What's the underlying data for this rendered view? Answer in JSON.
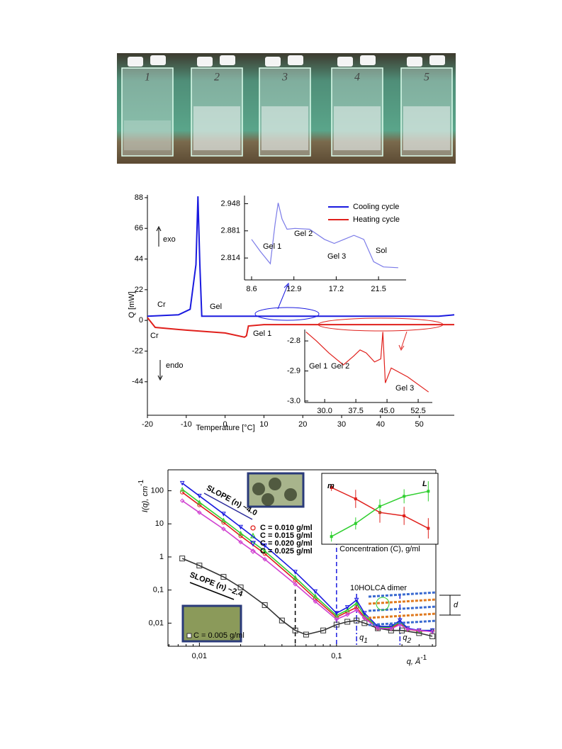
{
  "photo": {
    "vial_labels": [
      "1",
      "2",
      "3",
      "4",
      "5"
    ]
  },
  "chart_data": [
    {
      "type": "line",
      "xlabel": "Temperature [°C]",
      "ylabel": "Q [mW]",
      "xlim": [
        -20,
        59
      ],
      "ylim": [
        -68,
        90
      ],
      "xticks": [
        -20,
        -10,
        0,
        10,
        20,
        30,
        40,
        50
      ],
      "yticks": [
        88,
        66,
        44,
        22,
        0,
        -22,
        -44
      ],
      "series": [
        {
          "name": "Cooling cycle",
          "color": "#1a1adf",
          "x": [
            -20,
            -12,
            -9,
            -7.5,
            -7,
            -6.5,
            -6,
            10,
            30,
            55,
            59
          ],
          "values": [
            3,
            4,
            8,
            40,
            89,
            40,
            3,
            3,
            3,
            3,
            4
          ]
        },
        {
          "name": "Heating cycle",
          "color": "#e0201c",
          "x": [
            -20,
            -18,
            -10,
            0,
            5,
            5.5,
            6,
            10,
            30,
            59
          ],
          "values": [
            2,
            -5,
            -7,
            -9,
            -12,
            -11,
            -4,
            -3,
            -3,
            -3
          ]
        }
      ],
      "annotations": [
        "exo",
        "endo",
        "Cr",
        "Gel",
        "Cr",
        "Gel 1"
      ]
    },
    {
      "type": "line",
      "xlim": [
        7.88,
        24.3
      ],
      "ylim": [
        2.76,
        2.968
      ],
      "xticks": [
        8.6,
        12.9,
        17.2,
        21.5
      ],
      "yticks": [
        2.948,
        2.881,
        2.814
      ],
      "series": [
        {
          "color": "#7b7be8",
          "x": [
            8.6,
            9.5,
            10.5,
            11,
            11.3,
            11.7,
            12.2,
            13,
            14.5,
            16,
            17,
            18,
            19,
            20,
            21,
            22,
            23.5
          ],
          "values": [
            2.86,
            2.83,
            2.8,
            2.9,
            2.95,
            2.91,
            2.885,
            2.887,
            2.885,
            2.86,
            2.85,
            2.86,
            2.87,
            2.86,
            2.805,
            2.792,
            2.79
          ]
        }
      ],
      "annotations": [
        "Gel 1",
        "Gel 2",
        "Gel 3",
        "Sol"
      ]
    },
    {
      "type": "line",
      "xlim": [
        25.2,
        55.9
      ],
      "ylim": [
        -3.005,
        -2.762
      ],
      "xticks": [
        {
          "value": 30,
          "label": "30.0"
        },
        37.5,
        {
          "value": 45,
          "label": "45.0"
        },
        52.5
      ],
      "yticks": [
        -2.8,
        -2.9,
        {
          "value": -3,
          "label": "-3.0"
        }
      ],
      "series": [
        {
          "color": "#e0201c",
          "x": [
            25.5,
            28,
            31,
            34.5,
            37,
            38.5,
            40,
            42,
            43.5,
            44,
            44.6,
            46,
            50,
            55
          ],
          "values": [
            -2.77,
            -2.8,
            -2.84,
            -2.88,
            -2.85,
            -2.83,
            -2.84,
            -2.87,
            -2.86,
            -2.77,
            -2.94,
            -2.89,
            -2.92,
            -2.97
          ]
        }
      ],
      "annotations": [
        "Gel 1",
        "Gel 2",
        "Gel 3"
      ]
    },
    {
      "type": "line",
      "log_x": true,
      "log_y": true,
      "xlabel": {
        "main": "q, Å",
        "sup": "-1"
      },
      "ylabel": {
        "main": "I(q), cm",
        "sup": "-1"
      },
      "xlim": [
        0.0059,
        0.53
      ],
      "ylim": [
        0.002,
        430
      ],
      "xticks": [
        {
          "value": 0.01,
          "label": "0,01"
        },
        {
          "value": 0.1,
          "label": "0,1"
        }
      ],
      "yticks": [
        100,
        10,
        1,
        {
          "value": 0.1,
          "label": "0,1"
        },
        {
          "value": 0.01,
          "label": "0,01"
        }
      ],
      "series": [
        {
          "name": "C = 0.005 g/ml",
          "color": "#333333",
          "marker": "square",
          "x": [
            0.0075,
            0.01,
            0.015,
            0.02,
            0.03,
            0.04,
            0.05,
            0.06,
            0.08,
            0.1,
            0.12,
            0.14,
            0.16,
            0.2,
            0.25,
            0.3,
            0.4,
            0.5
          ],
          "values": [
            0.9,
            0.55,
            0.25,
            0.12,
            0.035,
            0.012,
            0.006,
            0.0045,
            0.006,
            0.009,
            0.011,
            0.012,
            0.01,
            0.007,
            0.006,
            0.006,
            0.005,
            0.004
          ]
        },
        {
          "name": "C = 0.010 g/ml",
          "color": "#e0201c",
          "marker": "circle",
          "x": [
            0.0075,
            0.01,
            0.015,
            0.02,
            0.03,
            0.05,
            0.07,
            0.1,
            0.12,
            0.14,
            0.16,
            0.2,
            0.25,
            0.29,
            0.33,
            0.4,
            0.5
          ],
          "values": [
            90,
            37,
            11,
            4.3,
            1.25,
            0.2,
            0.055,
            0.015,
            0.022,
            0.03,
            0.015,
            0.007,
            0.007,
            0.01,
            0.0065,
            0.0058,
            0.0058
          ]
        },
        {
          "name": "C = 0.015 g/ml",
          "color": "#2fcf2f",
          "marker": "triangle-up",
          "x": [
            0.0075,
            0.01,
            0.015,
            0.02,
            0.03,
            0.05,
            0.07,
            0.1,
            0.12,
            0.14,
            0.16,
            0.2,
            0.25,
            0.29,
            0.33,
            0.4,
            0.5
          ],
          "values": [
            110,
            45,
            13,
            5.2,
            1.5,
            0.24,
            0.065,
            0.017,
            0.025,
            0.04,
            0.017,
            0.0075,
            0.0075,
            0.011,
            0.0068,
            0.006,
            0.006
          ]
        },
        {
          "name": "C = 0.020 g/ml",
          "color": "#1a1adf",
          "marker": "triangle-down",
          "x": [
            0.0075,
            0.01,
            0.015,
            0.02,
            0.03,
            0.05,
            0.07,
            0.1,
            0.12,
            0.14,
            0.16,
            0.2,
            0.25,
            0.29,
            0.33,
            0.4,
            0.5
          ],
          "values": [
            170,
            70,
            20,
            8,
            2.2,
            0.35,
            0.09,
            0.02,
            0.03,
            0.05,
            0.02,
            0.008,
            0.008,
            0.012,
            0.007,
            0.006,
            0.006
          ]
        },
        {
          "name": "C = 0.025 g/ml",
          "color": "#d040d0",
          "marker": "diamond",
          "x": [
            0.0075,
            0.01,
            0.015,
            0.02,
            0.03,
            0.05,
            0.07,
            0.1,
            0.12,
            0.14,
            0.16,
            0.2,
            0.25,
            0.29,
            0.33,
            0.4,
            0.5
          ],
          "values": [
            50,
            22,
            7,
            2.8,
            0.85,
            0.15,
            0.045,
            0.013,
            0.018,
            0.025,
            0.014,
            0.007,
            0.0068,
            0.009,
            0.0065,
            0.006,
            0.0055
          ]
        }
      ],
      "vlines": [
        {
          "x": 0.05,
          "color": "#000000"
        },
        {
          "x": 0.1,
          "color": "#1a1adf"
        }
      ],
      "peak_labels": [
        {
          "main": "q",
          "sub": "1",
          "x": 0.14
        },
        {
          "main": "q",
          "sub": "2",
          "x": 0.29
        }
      ],
      "annotations": [
        "SLOPE (n) ~4.0",
        "SLOPE (n) ~2.4"
      ],
      "schematic": {
        "label": "10HOLCA dimer",
        "spacing": "d"
      }
    },
    {
      "type": "line",
      "xlabel": "Concentration (C), g/ml",
      "xlim": [
        0.003,
        0.027
      ],
      "ylim": [
        3.5,
        9
      ],
      "y2lim": [
        0,
        6.2
      ],
      "series": [
        {
          "name": "m",
          "color": "#e0201c",
          "x": [
            0.005,
            0.01,
            0.015,
            0.02,
            0.025
          ],
          "values": [
            8.0,
            7.0,
            5.8,
            5.5,
            4.4
          ],
          "errors": [
            0.3,
            0.8,
            0.9,
            0.8,
            0.9
          ]
        },
        {
          "name": "L",
          "color": "#2fcf2f",
          "axis": "y2",
          "x": [
            0.005,
            0.01,
            0.015,
            0.02,
            0.025
          ],
          "values": [
            0.2,
            1.5,
            3.2,
            4.2,
            4.7
          ],
          "errors": [
            0.5,
            0.6,
            0.7,
            0.7,
            1.0
          ]
        }
      ]
    }
  ]
}
